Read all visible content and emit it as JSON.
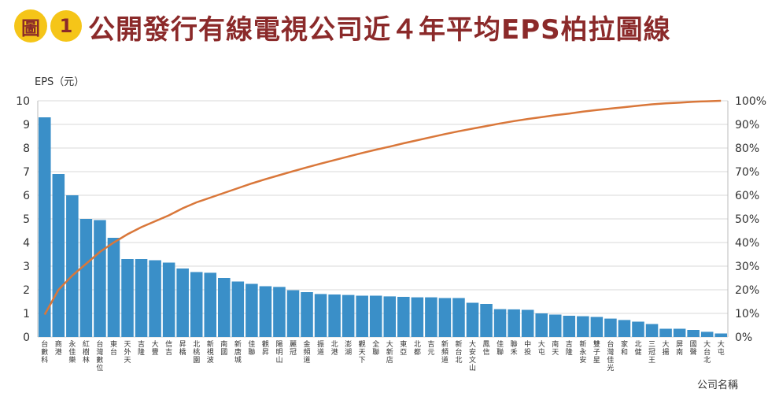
{
  "header": {
    "badge_text": "圖",
    "badge_number": "1",
    "title": "公開發行有線電視公司近４年平均EPS柏拉圖線"
  },
  "chart_data": {
    "type": "bar",
    "ylabel": "EPS（元）",
    "xlabel": "公司名稱",
    "ylim": [
      0,
      10
    ],
    "y_ticks": [
      "0",
      "1",
      "2",
      "3",
      "4",
      "5",
      "6",
      "7",
      "8",
      "9",
      "10"
    ],
    "y2_ticks": [
      "0%",
      "10%",
      "20%",
      "30%",
      "40%",
      "50%",
      "60%",
      "70%",
      "80%",
      "90%",
      "100%"
    ],
    "bar_color": "#3a8fc8",
    "line_color": "#d9773a",
    "grid": true,
    "categories": [
      "台數科",
      "商港",
      "永佳樂",
      "紅樹林",
      "台灣數位",
      "東台",
      "天外天",
      "吉隆",
      "大豐",
      "信吉",
      "昇橋",
      "北桃園",
      "新視波",
      "南國",
      "新唐城",
      "佳聯",
      "觀昇",
      "陽明山",
      "麗冠",
      "金頻道",
      "振道",
      "北港",
      "澎湖",
      "觀天下",
      "全聯",
      "大新店",
      "東亞",
      "北都",
      "吉元",
      "新頻道",
      "新台北",
      "大安文山",
      "鳳信",
      "佳聯",
      "聯禾",
      "中投",
      "大屯",
      "南天",
      "吉隆",
      "新永安",
      "雙子星",
      "台灣佳光",
      "家和",
      "北健",
      "三冠王",
      "大揚",
      "屏南",
      "國聲",
      "大台北",
      "大屯"
    ],
    "series": [
      {
        "values": [
          9.3,
          6.9,
          6.0,
          5.0,
          4.95,
          4.2,
          3.3,
          3.3,
          3.25,
          3.15,
          2.9,
          2.75,
          2.72,
          2.5,
          2.35,
          2.25,
          2.15,
          2.12,
          1.98,
          1.9,
          1.82,
          1.8,
          1.78,
          1.75,
          1.75,
          1.72,
          1.7,
          1.68,
          1.68,
          1.65,
          1.65,
          1.45,
          1.4,
          1.18,
          1.17,
          1.15,
          1.0,
          0.95,
          0.9,
          0.88,
          0.85,
          0.78,
          0.72,
          0.65,
          0.55,
          0.35,
          0.35,
          0.3,
          0.22,
          0.15
        ]
      },
      {
        "values": [
          9.5,
          20.0,
          26.0,
          31.0,
          36.0,
          40.0,
          43.5,
          46.5,
          49.0,
          51.5,
          54.5,
          57.0,
          59.0,
          61.0,
          63.0,
          65.0,
          66.8,
          68.5,
          70.2,
          71.8,
          73.4,
          74.9,
          76.4,
          77.9,
          79.3,
          80.6,
          82.0,
          83.3,
          84.6,
          85.9,
          87.1,
          88.2,
          89.3,
          90.4,
          91.4,
          92.3,
          93.1,
          93.9,
          94.6,
          95.4,
          96.1,
          96.7,
          97.3,
          97.9,
          98.5,
          98.9,
          99.2,
          99.6,
          99.8,
          100.0
        ]
      }
    ]
  }
}
